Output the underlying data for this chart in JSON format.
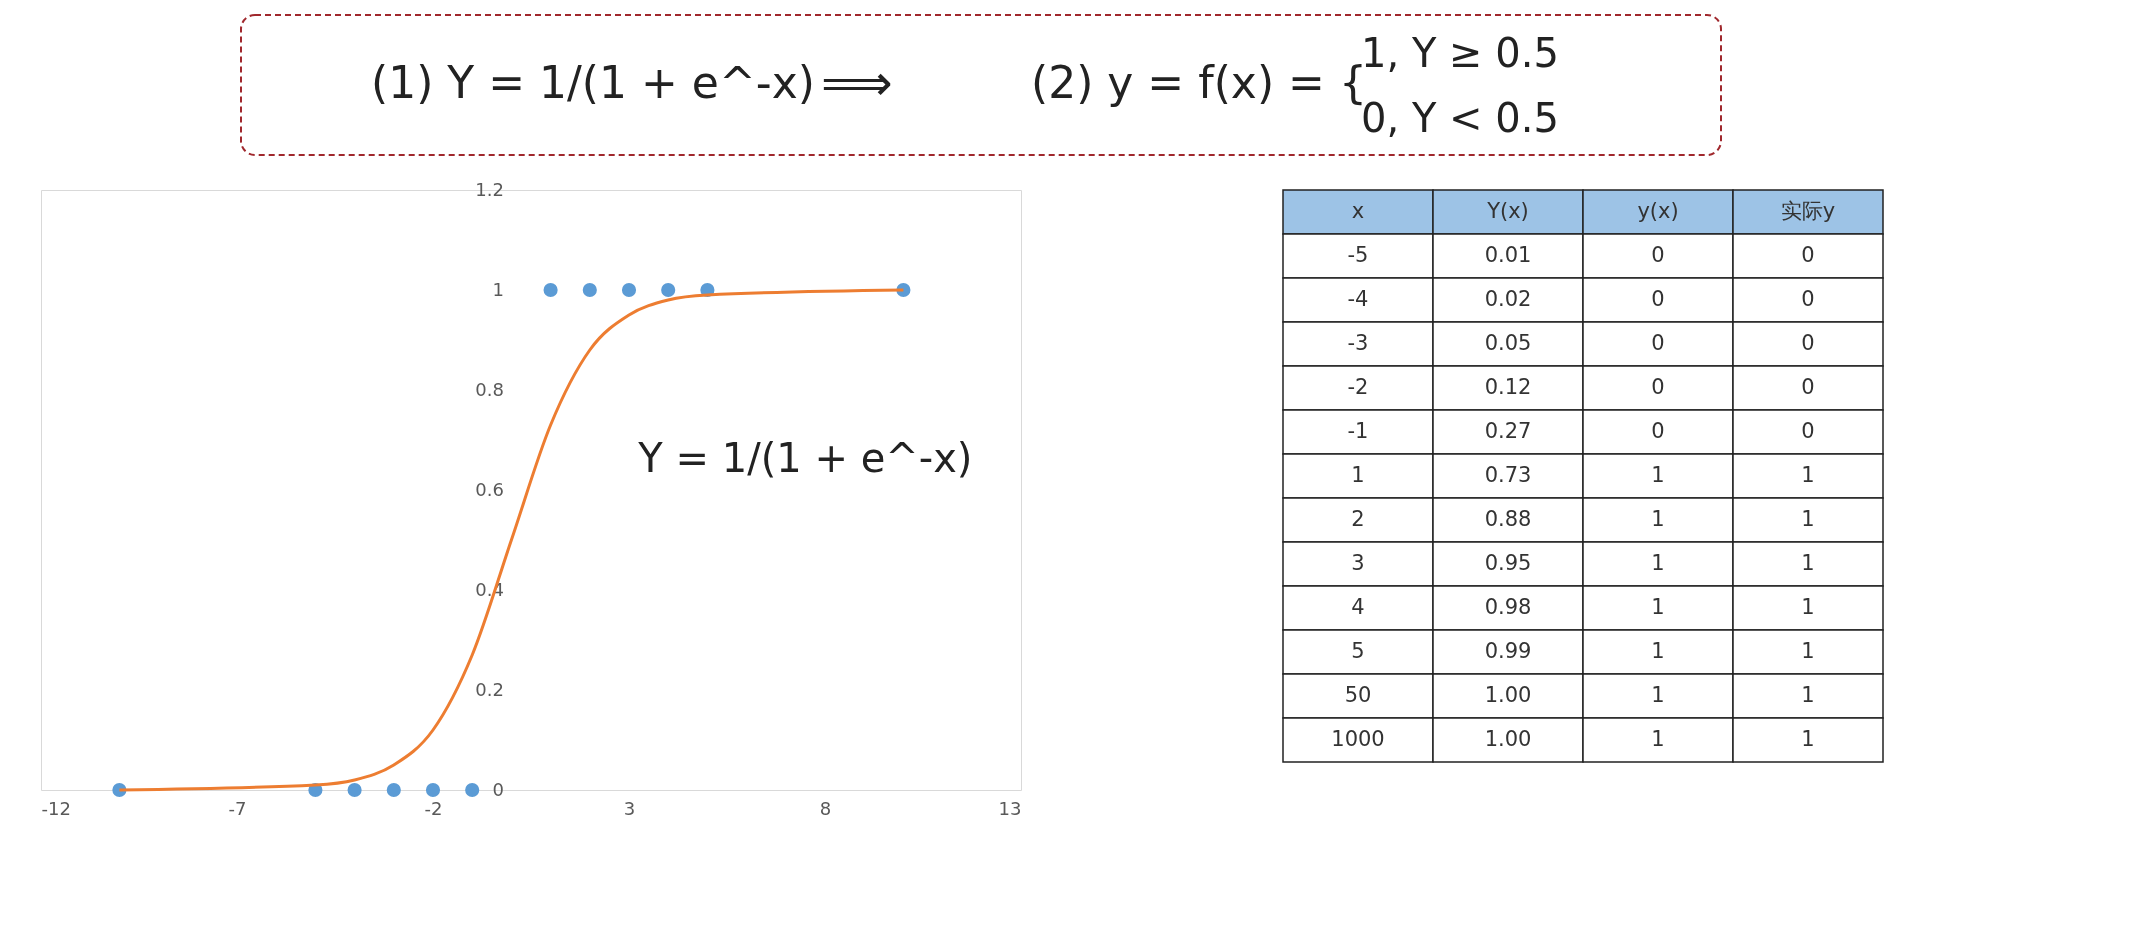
{
  "chart_data": [
    {
      "type": "other",
      "annotations": [
        "(1) Y = 1/(1 + e^-x)",
        "⟹",
        "(2) y = f(x) = {",
        "1,      Y ≥ 0.5",
        "0,      Y < 0.5"
      ]
    },
    {
      "type": "scatter",
      "series": [
        {
          "color": "#5b9bd5",
          "marker": "circle",
          "x": [
            -10,
            -5,
            -4,
            -3,
            -2,
            -1,
            1,
            2,
            3,
            4,
            5,
            10
          ],
          "values": [
            0,
            0,
            0,
            0,
            0,
            0,
            1,
            1,
            1,
            1,
            1,
            1
          ]
        },
        {
          "type": "line",
          "color": "#ed7d31",
          "marker": "none",
          "line_style": "solid",
          "x": [
            -10,
            -5,
            -4,
            -3,
            -2,
            -1,
            0,
            1,
            2,
            3,
            4,
            5,
            10
          ],
          "values": [
            0.0,
            0.01,
            0.02,
            0.05,
            0.12,
            0.27,
            0.5,
            0.73,
            0.88,
            0.95,
            0.98,
            0.99,
            1.0
          ]
        }
      ],
      "xlim": [
        -12,
        13
      ],
      "xticks": [
        -12,
        -7,
        -2,
        3,
        8,
        13
      ],
      "ylim": [
        0,
        1.2
      ],
      "yticks": [
        0,
        0.2,
        0.4,
        0.6,
        0.8,
        1,
        1.2
      ],
      "grid": false,
      "annotations": [
        "Y = 1/(1 + e^-x)"
      ]
    },
    {
      "type": "other",
      "categories": [
        "x",
        "Y(x)",
        "y(x)",
        "实际y"
      ],
      "cell_labels": [
        [
          "-5",
          "0.01",
          "0",
          "0"
        ],
        [
          "-4",
          "0.02",
          "0",
          "0"
        ],
        [
          "-3",
          "0.05",
          "0",
          "0"
        ],
        [
          "-2",
          "0.12",
          "0",
          "0"
        ],
        [
          "-1",
          "0.27",
          "0",
          "0"
        ],
        [
          "1",
          "0.73",
          "1",
          "1"
        ],
        [
          "2",
          "0.88",
          "1",
          "1"
        ],
        [
          "3",
          "0.95",
          "1",
          "1"
        ],
        [
          "4",
          "0.98",
          "1",
          "1"
        ],
        [
          "5",
          "0.99",
          "1",
          "1"
        ],
        [
          "50",
          "1.00",
          "1",
          "1"
        ],
        [
          "1000",
          "1.00",
          "1",
          "1"
        ]
      ]
    }
  ]
}
